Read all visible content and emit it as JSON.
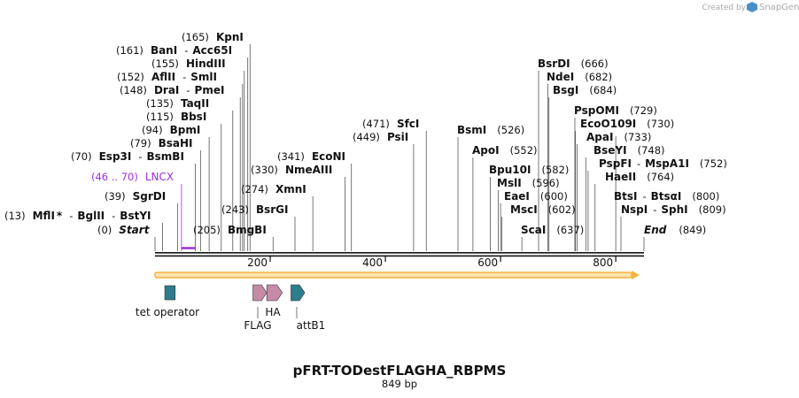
{
  "credit": {
    "prefix": "Created by",
    "brand": "SnapGene"
  },
  "plasmid": {
    "name": "pFRT-TODestFLAGHA_RBPMS",
    "length_text": "849 bp",
    "length_bp": 849
  },
  "left_labels": [
    {
      "pos": "(165)",
      "name": "KpnI",
      "bp": 165
    },
    {
      "pos": "(161)",
      "name": "BanI",
      "sep": "-",
      "name2": "Acc65I",
      "bp": 161
    },
    {
      "pos": "(155)",
      "name": "HindIII",
      "bp": 155
    },
    {
      "pos": "(152)",
      "name": "AflII",
      "sep": "-",
      "name2": "SmlI",
      "bp": 152
    },
    {
      "pos": "(148)",
      "name": "DraI",
      "sep": "-",
      "name2": "PmeI",
      "bp": 148
    },
    {
      "pos": "(135)",
      "name": "TaqII",
      "bp": 135
    },
    {
      "pos": "(115)",
      "name": "BbsI",
      "bp": 115
    },
    {
      "pos": "(94)",
      "name": "BpmI",
      "bp": 94
    },
    {
      "pos": "(79)",
      "name": "BsaHI",
      "bp": 79
    },
    {
      "pos": "(70)",
      "name": "Esp3I",
      "sep": "-",
      "name2": "BsmBI",
      "bp": 70
    },
    {
      "pos": "(46 .. 70)",
      "name": "LNCX",
      "bp": 46
    },
    {
      "pos": "(39)",
      "name": "SgrDI",
      "bp": 39
    },
    {
      "pos": "(13)",
      "name": "MflI",
      "star": "*",
      "sep": "-",
      "name2": "BglII",
      "sep2": "-",
      "name3": "BstYI",
      "bp": 13
    },
    {
      "pos": "(0)",
      "name": "Start",
      "bp": 0
    }
  ],
  "mid_labels": [
    {
      "pos": "(205)",
      "name": "BmgBI",
      "bp": 205
    },
    {
      "pos": "(243)",
      "name": "BsrGI",
      "bp": 243
    },
    {
      "pos": "(274)",
      "name": "XmnI",
      "bp": 274
    },
    {
      "pos": "(330)",
      "name": "NmeAIII",
      "bp": 330
    },
    {
      "pos": "(341)",
      "name": "EcoNI",
      "bp": 341
    },
    {
      "pos": "(449)",
      "name": "PsiI",
      "bp": 449
    },
    {
      "pos": "(471)",
      "name": "SfcI",
      "bp": 471
    }
  ],
  "right_labels": [
    {
      "pos": "(526)",
      "name": "BsmI",
      "bp": 526
    },
    {
      "pos": "(552)",
      "name": "ApoI",
      "bp": 552
    },
    {
      "pos": "(582)",
      "name": "Bpu10I",
      "bp": 582
    },
    {
      "pos": "(596)",
      "name": "MslI",
      "bp": 596
    },
    {
      "pos": "(600)",
      "name": "EaeI",
      "bp": 600
    },
    {
      "pos": "(602)",
      "name": "MscI",
      "bp": 602
    },
    {
      "pos": "(637)",
      "name": "ScaI",
      "bp": 637
    },
    {
      "pos": "(666)",
      "name": "BsrDI",
      "bp": 666
    },
    {
      "pos": "(682)",
      "name": "NdeI",
      "bp": 682
    },
    {
      "pos": "(684)",
      "name": "BsgI",
      "bp": 684
    },
    {
      "pos": "(729)",
      "name": "PspOMI",
      "bp": 729
    },
    {
      "pos": "(730)",
      "name": "EcoO109I",
      "bp": 730
    },
    {
      "pos": "(733)",
      "name": "ApaI",
      "bp": 733
    },
    {
      "pos": "(748)",
      "name": "BseYI",
      "bp": 748
    },
    {
      "pos": "(752)",
      "name": "PspFI",
      "sep": "-",
      "name2": "MspA1I",
      "bp": 752
    },
    {
      "pos": "(764)",
      "name": "HaeII",
      "bp": 764
    },
    {
      "pos": "(800)",
      "name": "BtsI",
      "sep": "-",
      "name2": "BtsαI",
      "bp": 800
    },
    {
      "pos": "(809)",
      "name": "NspI",
      "sep": "-",
      "name2": "SphI",
      "bp": 809
    },
    {
      "pos": "(849)",
      "name": "End",
      "bp": 849
    }
  ],
  "ticks": [
    {
      "label": "200",
      "bp": 200
    },
    {
      "label": "400",
      "bp": 400
    },
    {
      "label": "600",
      "bp": 600
    },
    {
      "label": "800",
      "bp": 800
    }
  ],
  "features": [
    {
      "label": "tet operator",
      "start_bp": 17,
      "end_bp": 35,
      "color": "#2e7d8c"
    },
    {
      "label": "FLAG",
      "start_bp": 170,
      "end_bp": 194,
      "color": "#c48aa6"
    },
    {
      "label": "HA",
      "start_bp": 194,
      "end_bp": 221,
      "color": "#c48aa6"
    },
    {
      "label": "attB1",
      "start_bp": 236,
      "end_bp": 260,
      "color": "#2e7d8c"
    }
  ],
  "colors": {
    "lncx": "#9b30d9",
    "orf": "#f3b33d",
    "orf_fill": "#fbe3b0",
    "teal": "#2e7d8c",
    "pink": "#c48aa6",
    "logo": "#4a90c8"
  }
}
